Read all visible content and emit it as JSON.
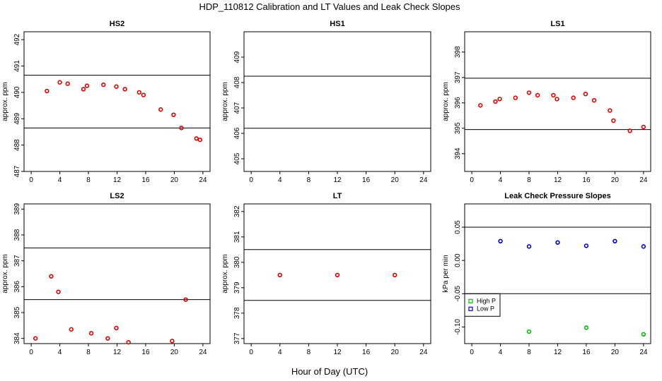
{
  "figure": {
    "title": "HDP_110812  Calibration and LT Values and Leak Check Slopes",
    "xlabel": "Hour of Day (UTC)"
  },
  "colors": {
    "calibration": "#e00000",
    "high_p": "#00c000",
    "low_p": "#0000d0"
  },
  "chart_data": [
    {
      "id": "hs2",
      "type": "scatter",
      "title": "HS2",
      "ylabel": "approx. ppm",
      "xlim": [
        -1,
        25
      ],
      "ylim": [
        487,
        492.3
      ],
      "xticks": [
        "0",
        "4",
        "8",
        "12",
        "16",
        "20",
        "24"
      ],
      "yticks": [
        "487",
        "488",
        "489",
        "490",
        "491",
        "492"
      ],
      "ref_lines": [
        490.65,
        488.65
      ],
      "series": [
        {
          "marker": "circle",
          "color": "#e00000",
          "x": [
            2.2,
            4.0,
            5.1,
            7.3,
            7.8,
            10.1,
            11.9,
            13.1,
            15.1,
            15.7,
            18.1,
            19.9,
            21.0,
            23.1,
            23.6
          ],
          "y": [
            490.05,
            490.38,
            490.33,
            490.12,
            490.25,
            490.29,
            490.22,
            490.12,
            490.0,
            489.9,
            489.35,
            489.15,
            488.65,
            488.25,
            488.2
          ]
        }
      ]
    },
    {
      "id": "hs1",
      "type": "scatter",
      "title": "HS1",
      "ylabel": "approx. ppm",
      "xlim": [
        -1,
        25
      ],
      "ylim": [
        404.5,
        410
      ],
      "xticks": [
        "0",
        "4",
        "8",
        "12",
        "16",
        "20",
        "24"
      ],
      "yticks": [
        "405",
        "406",
        "407",
        "408",
        "409"
      ],
      "ref_lines": [
        408.25,
        406.2
      ],
      "series": []
    },
    {
      "id": "ls1",
      "type": "scatter",
      "title": "LS1",
      "ylabel": "approx. ppm",
      "xlim": [
        -1,
        25
      ],
      "ylim": [
        393.3,
        398.8
      ],
      "xticks": [
        "0",
        "4",
        "8",
        "12",
        "16",
        "20",
        "24"
      ],
      "yticks": [
        "394",
        "395",
        "396",
        "397",
        "398"
      ],
      "ref_lines": [
        396.97,
        394.95
      ],
      "series": [
        {
          "marker": "circle",
          "color": "#e00000",
          "x": [
            1.2,
            3.3,
            3.9,
            6.1,
            8.0,
            9.2,
            11.4,
            11.9,
            14.2,
            15.9,
            17.1,
            19.3,
            19.8,
            22.1,
            24.0
          ],
          "y": [
            395.9,
            396.05,
            396.15,
            396.2,
            396.4,
            396.3,
            396.3,
            396.15,
            396.2,
            396.35,
            396.1,
            395.7,
            395.3,
            394.9,
            395.05
          ]
        }
      ]
    },
    {
      "id": "ls2",
      "type": "scatter",
      "title": "LS2",
      "ylabel": "approx. ppm",
      "xlim": [
        -1,
        25
      ],
      "ylim": [
        383.8,
        389.2
      ],
      "xticks": [
        "0",
        "4",
        "8",
        "12",
        "16",
        "20",
        "24"
      ],
      "yticks": [
        "384",
        "385",
        "386",
        "387",
        "388",
        "389"
      ],
      "ref_lines": [
        387.5,
        385.5
      ],
      "series": [
        {
          "marker": "circle",
          "color": "#e00000",
          "x": [
            0.6,
            2.8,
            3.8,
            5.6,
            8.4,
            10.7,
            11.9,
            13.6,
            19.7,
            21.6
          ],
          "y": [
            384.0,
            386.4,
            385.8,
            384.35,
            384.2,
            384.0,
            384.4,
            383.85,
            383.9,
            385.5
          ]
        }
      ]
    },
    {
      "id": "lt",
      "type": "scatter",
      "title": "LT",
      "ylabel": "approx. ppm",
      "xlim": [
        -1,
        25
      ],
      "ylim": [
        376.8,
        382.3
      ],
      "xticks": [
        "0",
        "4",
        "8",
        "12",
        "16",
        "20",
        "24"
      ],
      "yticks": [
        "377",
        "378",
        "379",
        "380",
        "381",
        "382"
      ],
      "ref_lines": [
        380.5,
        378.5
      ],
      "series": [
        {
          "marker": "circle",
          "color": "#e00000",
          "x": [
            4.0,
            12.0,
            20.0
          ],
          "y": [
            379.5,
            379.5,
            379.5
          ]
        }
      ]
    },
    {
      "id": "leak",
      "type": "scatter",
      "title": "Leak Check Pressure Slopes",
      "ylabel": "kPa per min",
      "xlim": [
        -1,
        25
      ],
      "ylim": [
        -0.125,
        0.085
      ],
      "xticks": [
        "0",
        "4",
        "8",
        "12",
        "16",
        "20",
        "24"
      ],
      "yticks": [
        "-0.10",
        "-0.05",
        "0.00",
        "0.05"
      ],
      "ytick_values": [
        -0.1,
        -0.05,
        0.0,
        0.05
      ],
      "ref_lines": [
        0.05,
        -0.05
      ],
      "legend": {
        "position": "bottom-left",
        "entries": [
          "High P",
          "Low P"
        ]
      },
      "series": [
        {
          "name": "High P",
          "marker": "circle",
          "color": "#00c000",
          "x": [
            8,
            16,
            24
          ],
          "y": [
            -0.107,
            -0.101,
            -0.111
          ]
        },
        {
          "name": "Low P",
          "marker": "circle",
          "color": "#0000d0",
          "x": [
            4,
            8,
            12,
            16,
            20,
            24
          ],
          "y": [
            0.029,
            0.021,
            0.027,
            0.022,
            0.029,
            0.021
          ]
        }
      ]
    }
  ]
}
